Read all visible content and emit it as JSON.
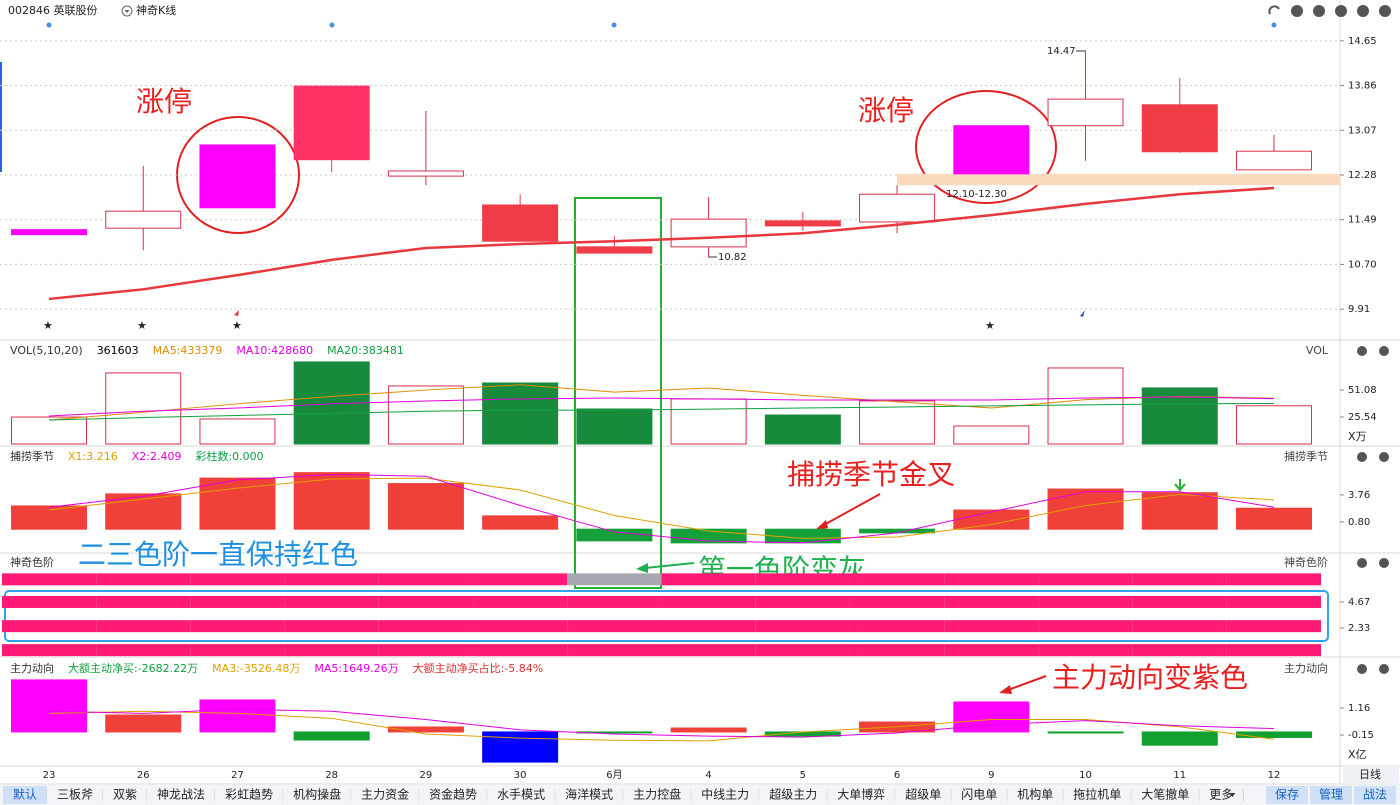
{
  "chart_data": [
    {
      "type": "candlestick",
      "title": "002846 英联股份",
      "subtitle": "神奇K线",
      "categories": [
        "23",
        "26",
        "27",
        "28",
        "29",
        "30",
        "6月",
        "4",
        "5",
        "6",
        "9",
        "10",
        "11",
        "12"
      ],
      "open": [
        11.27,
        11.34,
        11.7,
        13.85,
        12.26,
        11.75,
        11.01,
        11.01,
        11.47,
        11.45,
        12.3,
        13.15,
        13.52,
        12.37
      ],
      "high": [
        11.27,
        12.44,
        12.81,
        13.85,
        13.41,
        11.94,
        11.2,
        11.89,
        11.63,
        12.1,
        13.15,
        14.47,
        13.99,
        12.99
      ],
      "low": [
        11.27,
        10.95,
        11.7,
        12.33,
        12.1,
        11.11,
        10.9,
        10.82,
        11.29,
        11.25,
        12.3,
        12.53,
        12.67,
        12.37
      ],
      "close": [
        11.27,
        11.64,
        12.81,
        12.55,
        12.35,
        11.11,
        10.9,
        11.5,
        11.38,
        11.94,
        13.15,
        13.62,
        12.69,
        12.7
      ],
      "colors": [
        "#ff00ff",
        "#d9304a",
        "#ff00ff",
        "#ff3366",
        "#d9304a",
        "#f03c46",
        "#f03c46",
        "#d9304a",
        "#f03c46",
        "#d9304a",
        "#ff00ff",
        "#d9304a",
        "#f03c46",
        "#d9304a"
      ],
      "limit_color": "#ff00ff",
      "series": [
        {
          "color": "#e8383d",
          "values": [
            10.09,
            10.26,
            10.51,
            10.78,
            10.99,
            11.06,
            11.11,
            11.17,
            11.25,
            11.4,
            11.57,
            11.77,
            11.94,
            12.05
          ]
        }
      ],
      "zone": [
        12.1,
        12.3
      ],
      "zone_color": "#fbd9bb",
      "ylim": [
        9.4,
        15.0
      ],
      "yticks": [
        14.65,
        13.86,
        13.07,
        12.28,
        11.49,
        {
          "value": 10.7,
          "label": "10.70"
        },
        9.91
      ],
      "grid": true,
      "high_label": 14.47,
      "low_label": 10.82,
      "zone_label": "12.10-12.30",
      "annotations": [
        "涨停",
        "涨停"
      ]
    },
    {
      "type": "bar",
      "right_title": "VOL",
      "unit": "X万",
      "readouts": [
        {
          "text": "VOL(5,10,20)",
          "color": "#333333"
        },
        {
          "text": "361603",
          "color": "#000000"
        },
        {
          "text": "MA5:433379",
          "color": "#e08a00"
        },
        {
          "text": "MA10:428680",
          "color": "#e000e0"
        },
        {
          "text": "MA20:383481",
          "color": "#10a040"
        }
      ],
      "values": [
        25.5,
        67.2,
        23.7,
        77.6,
        54.9,
        57.7,
        33.1,
        42.6,
        27.4,
        40.7,
        17.0,
        71.9,
        53.0,
        36.16
      ],
      "colors": [
        "#d9304a",
        "#d9304a",
        "#d9304a",
        "#178a3c",
        "#d9304a",
        "#178a3c",
        "#178a3c",
        "#d9304a",
        "#178a3c",
        "#d9304a",
        "#d9304a",
        "#d9304a",
        "#178a3c",
        "#d9304a"
      ],
      "hollow_color": "#d9304a",
      "series": [
        {
          "color": "#e08a00",
          "values": [
            22.7,
            30,
            38,
            45,
            51,
            56,
            49,
            53,
            46,
            40,
            34,
            42,
            45,
            43.34
          ]
        },
        {
          "color": "#e000e0",
          "values": [
            26.5,
            31,
            34,
            38,
            40.7,
            42.6,
            43.5,
            42.6,
            41.6,
            41.6,
            41.6,
            43.5,
            44.5,
            42.87
          ]
        },
        {
          "color": "#10a040",
          "values": [
            22.7,
            25,
            27,
            29,
            31,
            32,
            32,
            33,
            34,
            35,
            36,
            37,
            38,
            38.35
          ]
        }
      ],
      "ylim": [
        0,
        95.5
      ],
      "yticks": [
        51.08,
        25.54
      ]
    },
    {
      "type": "bar",
      "right_title": "捕捞季节",
      "readouts": [
        {
          "text": "捕捞季节",
          "color": "#333333"
        },
        {
          "text": "X1:3.216",
          "color": "#e0a000"
        },
        {
          "text": "X2:2.409",
          "color": "#e000e0"
        },
        {
          "text": "彩柱数:0.000",
          "color": "#10a040"
        }
      ],
      "values": [
        2.55,
        3.87,
        5.6,
        6.2,
        5.0,
        1.46,
        -1.28,
        -1.5,
        -1.5,
        -0.4,
        2.1,
        4.4,
        4.0,
        2.3
      ],
      "colors": [
        "#f0403a",
        "#f0403a",
        "#f0403a",
        "#f0403a",
        "#f0403a",
        "#f0403a",
        "#15a03a",
        "#15a03a",
        "#15a03a",
        "#15a03a",
        "#f0403a",
        "#f0403a",
        "#f0403a",
        "#f0403a"
      ],
      "series": [
        {
          "color": "#e0a000",
          "values": [
            2.1,
            3.3,
            4.5,
            5.5,
            5.6,
            4.3,
            1.5,
            -0.2,
            -1.0,
            -0.85,
            0.5,
            2.6,
            3.8,
            3.216
          ]
        },
        {
          "color": "#e000e0",
          "values": [
            2.4,
            3.6,
            5.4,
            6.0,
            5.8,
            2.6,
            -0.3,
            -1.3,
            -1.5,
            -0.4,
            1.9,
            4.1,
            4.1,
            2.409
          ]
        }
      ],
      "ylim": [
        -2.5,
        8.9
      ],
      "yticks": [
        3.76,
        {
          "value": 0.8,
          "label": "0.80"
        }
      ],
      "annotations": [
        "捕捞季节金叉"
      ]
    },
    {
      "type": "band",
      "title": "神奇色阶",
      "right_title": "神奇色阶",
      "series": [
        {
          "values": [
            6.7,
            6.7,
            6.7,
            6.7,
            6.7,
            6.7,
            6.7,
            6.7,
            6.7,
            6.7,
            6.7,
            6.7,
            6.7,
            6.7
          ],
          "colors": [
            "#ff1a75",
            "#ff1a75",
            "#ff1a75",
            "#ff1a75",
            "#ff1a75",
            "#ff1a75",
            "#a8a8b0",
            "#ff1a75",
            "#ff1a75",
            "#ff1a75",
            "#ff1a75",
            "#ff1a75",
            "#ff1a75",
            "#ff1a75"
          ]
        },
        {
          "values": [
            4.67,
            4.67,
            4.67,
            4.67,
            4.67,
            4.67,
            4.67,
            4.67,
            4.67,
            4.67,
            4.67,
            4.67,
            4.67,
            4.67
          ],
          "colors": [
            "#ff1a75",
            "#ff1a75",
            "#ff1a75",
            "#ff1a75",
            "#ff1a75",
            "#ff1a75",
            "#ff1a75",
            "#ff1a75",
            "#ff1a75",
            "#ff1a75",
            "#ff1a75",
            "#ff1a75",
            "#ff1a75",
            "#ff1a75"
          ]
        },
        {
          "values": [
            2.5,
            2.5,
            2.5,
            2.5,
            2.5,
            2.5,
            2.5,
            2.5,
            2.5,
            2.5,
            2.5,
            2.5,
            2.5,
            2.5
          ],
          "colors": [
            "#ff1a75",
            "#ff1a75",
            "#ff1a75",
            "#ff1a75",
            "#ff1a75",
            "#ff1a75",
            "#ff1a75",
            "#ff1a75",
            "#ff1a75",
            "#ff1a75",
            "#ff1a75",
            "#ff1a75",
            "#ff1a75",
            "#ff1a75"
          ]
        },
        {
          "values": [
            0.35,
            0.35,
            0.35,
            0.35,
            0.35,
            0.35,
            0.35,
            0.35,
            0.35,
            0.35,
            0.35,
            0.35,
            0.35,
            0.35
          ],
          "colors": [
            "#ff1a75",
            "#ff1a75",
            "#ff1a75",
            "#ff1a75",
            "#ff1a75",
            "#ff1a75",
            "#ff1a75",
            "#ff1a75",
            "#ff1a75",
            "#ff1a75",
            "#ff1a75",
            "#ff1a75",
            "#ff1a75",
            "#ff1a75"
          ]
        }
      ],
      "ylim": [
        0,
        7
      ],
      "yticks": [
        4.67,
        2.33
      ],
      "annotations": [
        "二三色阶一直保持红色",
        "第一色阶变灰"
      ]
    },
    {
      "type": "bar",
      "right_title": "主力动向",
      "unit": "X亿",
      "readouts": [
        {
          "text": "主力动向",
          "color": "#333333"
        },
        {
          "text": "大额主动净买:-2682.22万",
          "color": "#10a040"
        },
        {
          "text": "MA3:-3526.48万",
          "color": "#e0a000"
        },
        {
          "text": "MA5:1649.26万",
          "color": "#e000e0"
        },
        {
          "text": "大额主动净买占比:-5.84%",
          "color": "#e03030"
        }
      ],
      "values": [
        2.52,
        0.82,
        1.55,
        -0.39,
        0.24,
        -1.46,
        -0.02,
        0.19,
        -0.2,
        0.48,
        1.45,
        -0.05,
        -0.64,
        -0.268
      ],
      "colors": [
        "#ff00ff",
        "#f0403a",
        "#ff00ff",
        "#10a030",
        "#f0403a",
        "#0000ff",
        "#10a030",
        "#f0403a",
        "#10a030",
        "#f0403a",
        "#ff00ff",
        "#10a030",
        "#10a030",
        "#10a030"
      ],
      "series": [
        {
          "color": "#e0a000",
          "values": [
            0.9,
            1.0,
            0.9,
            0.66,
            -0.1,
            -0.3,
            -0.4,
            -0.43,
            0.0,
            0.25,
            0.6,
            0.6,
            0.25,
            -0.353
          ]
        },
        {
          "color": "#e000e0",
          "values": [
            1.0,
            0.9,
            1.1,
            1.0,
            0.6,
            0.1,
            -0.1,
            -0.2,
            -0.25,
            -0.05,
            0.35,
            0.55,
            0.3,
            0.165
          ]
        }
      ],
      "ylim": [
        -1.6,
        2.66
      ],
      "yticks": [
        1.16,
        -0.15
      ],
      "annotations": [
        "主力动向变紫色"
      ]
    }
  ],
  "toolbar": {
    "tabs": [
      "默认",
      "三板斧",
      "双紫",
      "神龙战法",
      "彩虹趋势",
      "机构操盘",
      "主力资金",
      "资金趋势",
      "水手模式",
      "海洋模式",
      "主力控盘",
      "中线主力",
      "超级主力",
      "大单博弈",
      "超级单",
      "闪电单",
      "机构单",
      "拖拉机单",
      "大笔撤单",
      "更多"
    ],
    "buttons": [
      "保存",
      "管理",
      "战法"
    ],
    "period": "日线"
  }
}
